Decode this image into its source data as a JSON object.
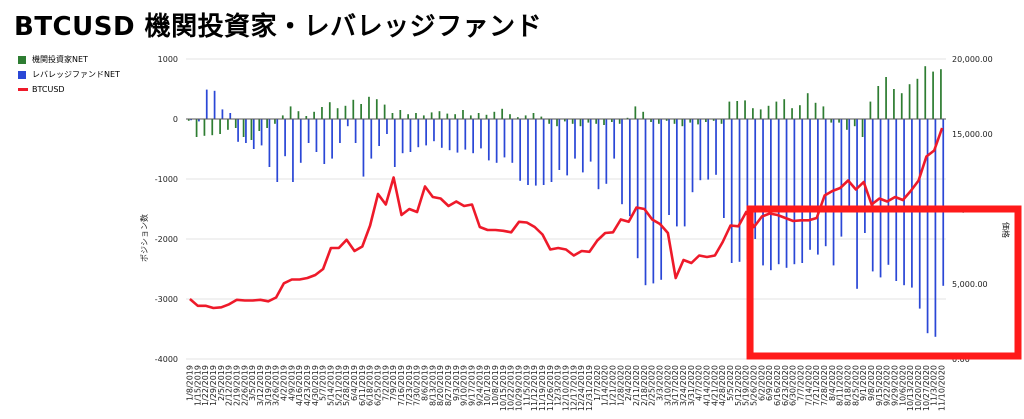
{
  "title": "BTCUSD 機関投資家・レバレッジファンド",
  "legend": [
    {
      "label": "機関投資家NET",
      "color": "#2e7d32",
      "kind": "bar"
    },
    {
      "label": "レバレッジファンドNET",
      "color": "#2a47d6",
      "kind": "bar"
    },
    {
      "label": "BTCUSD",
      "color": "#ee1a2a",
      "kind": "line"
    }
  ],
  "chart_data": {
    "type": "bar",
    "title": "BTCUSD 機関投資家・レバレッジファンド",
    "ylabel": "ポジション数",
    "y2label": "価格",
    "ylim": [
      -4000,
      1000
    ],
    "y2lim": [
      0,
      20000
    ],
    "yticks": [
      "1000",
      "0",
      "-1000",
      "-2000",
      "-3000",
      "-4000"
    ],
    "y2ticks": [
      "20,000.00",
      "15,000.00",
      "10,000.00",
      "5,000.00",
      "0.00"
    ],
    "grid": true,
    "legend_position": "top-left",
    "highlight_box": {
      "x_from": "5/26/2020",
      "x_to": "11/10/2020",
      "y_from": -3950,
      "y_to": -1500,
      "color": "#ff1a1a"
    },
    "x": [
      "1/8/2019",
      "1/15/2019",
      "1/22/2019",
      "1/29/2019",
      "2/5/2019",
      "2/12/2019",
      "2/19/2019",
      "2/26/2019",
      "3/5/2019",
      "3/12/2019",
      "3/19/2019",
      "3/26/2019",
      "4/2/2019",
      "4/9/2019",
      "4/16/2019",
      "4/23/2019",
      "4/30/2019",
      "5/7/2019",
      "5/14/2019",
      "5/21/2019",
      "5/28/2019",
      "6/4/2019",
      "6/11/2019",
      "6/18/2019",
      "6/25/2019",
      "7/2/2019",
      "7/9/2019",
      "7/16/2019",
      "7/23/2019",
      "7/30/2019",
      "8/6/2019",
      "8/13/2019",
      "8/20/2019",
      "8/27/2019",
      "9/3/2019",
      "9/10/2019",
      "9/17/2019",
      "9/24/2019",
      "10/1/2019",
      "10/8/2019",
      "10/15/2019",
      "10/22/2019",
      "10/29/2019",
      "11/5/2019",
      "11/12/2019",
      "11/19/2019",
      "11/26/2019",
      "12/3/2019",
      "12/10/2019",
      "12/17/2019",
      "12/24/2019",
      "12/31/2019",
      "1/7/2020",
      "1/14/2020",
      "1/21/2020",
      "1/28/2020",
      "2/4/2020",
      "2/11/2020",
      "2/18/2020",
      "2/25/2020",
      "3/3/2020",
      "3/10/2020",
      "3/17/2020",
      "3/24/2020",
      "3/31/2020",
      "4/7/2020",
      "4/14/2020",
      "4/21/2020",
      "4/28/2020",
      "5/5/2020",
      "5/12/2020",
      "5/19/2020",
      "5/26/2020",
      "6/2/2020",
      "6/9/2020",
      "6/16/2020",
      "6/23/2020",
      "6/30/2020",
      "7/7/2020",
      "7/14/2020",
      "7/21/2020",
      "7/28/2020",
      "8/4/2020",
      "8/11/2020",
      "8/18/2020",
      "8/25/2020",
      "9/1/2020",
      "9/8/2020",
      "9/15/2020",
      "9/22/2020",
      "9/29/2020",
      "10/6/2020",
      "10/13/2020",
      "10/20/2020",
      "10/27/2020",
      "11/3/2020",
      "11/10/2020"
    ],
    "xtick_labels": [
      "1/8/2019",
      "1/15/2019",
      "1/22/2019",
      "1/29/2019",
      "2/5/2019",
      "2/12/2019",
      "2/19/2019",
      "2/26/2019",
      "3/5/2019",
      "3/12/2019",
      "3/19/2019",
      "3/26/2019",
      "4/2/2019",
      "4/9/2019",
      "4/16/2019",
      "4/23/2019",
      "4/30/2019",
      "5/7/2019",
      "5/14/2019",
      "5/21/2019",
      "5/28/2019",
      "6/4/2019",
      "6/11/2019",
      "6/18/2019",
      "6/25/2019",
      "7/2/2019",
      "7/9/2019",
      "7/16/2019",
      "7/23/2019",
      "7/30/2019",
      "8/6/2019",
      "8/13/2019",
      "8/20/2019",
      "8/27/2019",
      "9/3/2019",
      "9/10/2019",
      "9/17/2019",
      "9/24/2019",
      "10/1/2019",
      "10/8/2019",
      "10/15/2019",
      "10/22/2019",
      "10/29/2019",
      "11/5/2019",
      "11/12/2019",
      "11/19/2019",
      "11/26/2019",
      "12/3/2019",
      "12/10/2019",
      "12/17/2019",
      "12/24/2019",
      "12/31/2019",
      "1/7/2020",
      "1/14/2020",
      "1/21/2020",
      "1/28/2020",
      "2/4/2020",
      "2/11/2020",
      "2/18/2020",
      "2/25/2020",
      "3/3/2020",
      "3/10/2020",
      "3/17/2020",
      "3/24/2020",
      "3/31/2020",
      "4/7/2020",
      "4/14/2020",
      "4/21/2020",
      "4/28/2020",
      "5/5/2020",
      "5/12/2020",
      "5/19/2020",
      "5/26/2020",
      "6/2/2020",
      "6/9/2020",
      "6/16/2020",
      "6/23/2020",
      "6/30/2020",
      "7/7/2020",
      "7/14/2020",
      "7/21/2020",
      "7/28/2020",
      "8/4/2020",
      "8/11/2020",
      "8/18/2020",
      "8/25/2020",
      "9/1/2020",
      "9/8/2020",
      "9/15/2020",
      "9/22/2020",
      "9/29/2020",
      "10/6/2020",
      "10/13/2020",
      "10/20/2020",
      "10/27/2020",
      "11/3/2020",
      "11/10/2020"
    ],
    "series": [
      {
        "name": "機関投資家NET",
        "type": "bar",
        "axis": "left",
        "color": "#2e7d32",
        "values": [
          -30,
          -300,
          -280,
          -270,
          -250,
          -180,
          -150,
          -300,
          -350,
          -200,
          -150,
          -80,
          60,
          210,
          130,
          50,
          120,
          200,
          280,
          180,
          220,
          320,
          250,
          370,
          330,
          240,
          100,
          150,
          80,
          100,
          60,
          110,
          130,
          90,
          80,
          150,
          60,
          100,
          70,
          120,
          170,
          80,
          30,
          60,
          100,
          40,
          -80,
          -120,
          -40,
          -80,
          -120,
          -60,
          -80,
          -100,
          -50,
          -80,
          20,
          210,
          120,
          -50,
          -80,
          -30,
          -80,
          -120,
          -60,
          -90,
          -50,
          -30,
          -80,
          290,
          300,
          310,
          180,
          160,
          220,
          290,
          330,
          180,
          230,
          430,
          270,
          210,
          -60,
          -60,
          -180,
          -120,
          -300,
          290,
          550,
          700,
          500,
          430,
          580,
          670,
          880,
          790,
          830
        ]
      },
      {
        "name": "レバレッジファンドNET",
        "type": "bar",
        "axis": "left",
        "color": "#2a47d6",
        "values": [
          -20,
          -40,
          490,
          470,
          160,
          100,
          -380,
          -400,
          -500,
          -440,
          -800,
          -1050,
          -620,
          -1050,
          -730,
          -400,
          -550,
          -750,
          -660,
          -400,
          -120,
          -400,
          -960,
          -660,
          -450,
          -250,
          -800,
          -570,
          -550,
          -470,
          -440,
          -370,
          -480,
          -520,
          -560,
          -510,
          -570,
          -490,
          -690,
          -730,
          -640,
          -730,
          -1030,
          -1100,
          -1110,
          -1100,
          -1050,
          -850,
          -940,
          -660,
          -890,
          -710,
          -1170,
          -1080,
          -660,
          -1420,
          -1620,
          -2320,
          -2770,
          -2740,
          -2680,
          -1600,
          -1790,
          -1790,
          -1220,
          -1020,
          -1010,
          -930,
          -1650,
          -2400,
          -2380,
          -2340,
          -2000,
          -2440,
          -2520,
          -2420,
          -2480,
          -2420,
          -2400,
          -2180,
          -2260,
          -2120,
          -2440,
          -1960,
          -1510,
          -2830,
          -1900,
          -2540,
          -2640,
          -2430,
          -2700,
          -2770,
          -2810,
          -3160,
          -3570,
          -3630,
          -2780
        ]
      },
      {
        "name": "BTCUSD",
        "type": "line",
        "axis": "right",
        "color": "#ee1a2a",
        "values": [
          4000,
          3550,
          3550,
          3400,
          3450,
          3650,
          3950,
          3900,
          3900,
          3950,
          3850,
          4100,
          5050,
          5300,
          5300,
          5400,
          5600,
          6000,
          7400,
          7400,
          7950,
          7200,
          7500,
          8900,
          11000,
          10300,
          12100,
          9600,
          10000,
          9800,
          11500,
          10800,
          10700,
          10200,
          10500,
          10200,
          10300,
          8800,
          8600,
          8600,
          8550,
          8450,
          9150,
          9100,
          8800,
          8300,
          7300,
          7400,
          7300,
          6900,
          7200,
          7150,
          7900,
          8400,
          8450,
          9300,
          9150,
          10100,
          10000,
          9300,
          9000,
          8400,
          5400,
          6600,
          6400,
          6900,
          6800,
          6900,
          7800,
          8900,
          8850,
          9800,
          8800,
          9500,
          9700,
          9600,
          9400,
          9200,
          9250,
          9250,
          9400,
          10900,
          11200,
          11400,
          11900,
          11300,
          11800,
          10300,
          10700,
          10500,
          10800,
          10600,
          11200,
          11900,
          13500,
          13900,
          15400
        ]
      }
    ]
  }
}
